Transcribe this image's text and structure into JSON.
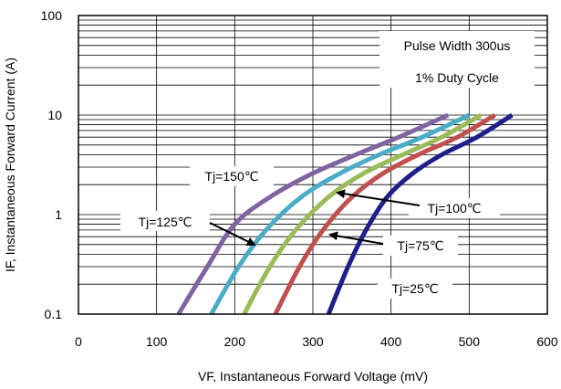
{
  "chart_data": {
    "type": "line",
    "title": "",
    "xlabel": "VF, Instantaneous Forward  Voltage (mV)",
    "ylabel": "IF, Instantaneous Forward Current (A)",
    "xlim": [
      0,
      600
    ],
    "ylim": [
      0.1,
      100
    ],
    "yscale": "log",
    "x_ticks": [
      "0",
      "100",
      "200",
      "300",
      "400",
      "500",
      "600"
    ],
    "y_ticks": [
      "0.1",
      "1",
      "10",
      "100"
    ],
    "grid": true,
    "notes": [
      "Pulse Width 300us",
      "1% Duty Cycle"
    ],
    "series": [
      {
        "name": "Tj=150℃",
        "color": "#8064a2",
        "x": [
          128,
          165,
          200,
          245,
          300,
          355,
          410,
          473
        ],
        "y": [
          0.1,
          0.3,
          0.8,
          1.5,
          2.6,
          4.0,
          6.0,
          10.0
        ]
      },
      {
        "name": "Tj=125℃",
        "color": "#4bacc6",
        "x": [
          170,
          205,
          240,
          285,
          335,
          385,
          440,
          500
        ],
        "y": [
          0.1,
          0.3,
          0.7,
          1.5,
          2.6,
          4.0,
          6.0,
          10.0
        ]
      },
      {
        "name": "Tj=100℃",
        "color": "#9bbb59",
        "x": [
          212,
          245,
          278,
          320,
          365,
          415,
          465,
          515
        ],
        "y": [
          0.1,
          0.3,
          0.7,
          1.5,
          2.6,
          4.0,
          6.0,
          10.0
        ]
      },
      {
        "name": "Tj=75℃",
        "color": "#c0504d",
        "x": [
          252,
          283,
          313,
          350,
          390,
          435,
          485,
          533
        ],
        "y": [
          0.1,
          0.3,
          0.7,
          1.5,
          2.6,
          4.0,
          6.0,
          10.0
        ]
      },
      {
        "name": "Tj=25℃",
        "color": "#1f1f8c",
        "x": [
          320,
          345,
          368,
          395,
          428,
          465,
          510,
          555
        ],
        "y": [
          0.1,
          0.3,
          0.7,
          1.5,
          2.6,
          4.0,
          6.0,
          10.0
        ]
      }
    ]
  }
}
